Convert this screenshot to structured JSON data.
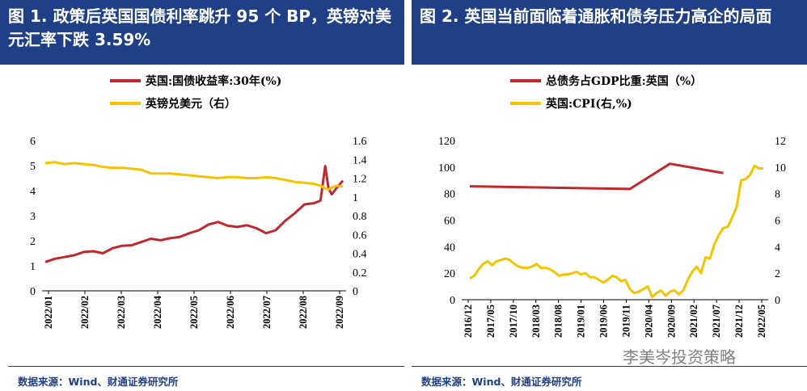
{
  "charts": [
    {
      "title": "图 1. 政策后英国国债利率跳升 95 个 BP，英镑对美元汇率下跌 3.59%",
      "source": "数据来源：Wind、财通证券研究所",
      "legend": [
        "英国:国债收益率:30年(%)",
        "英镑兑美元（右）"
      ],
      "left_ticks": [
        "0",
        "1",
        "2",
        "3",
        "4",
        "5",
        "6"
      ],
      "right_ticks": [
        "0",
        "0.2",
        "0.4",
        "0.6",
        "0.8",
        "1",
        "1.2",
        "1.4",
        "1.6"
      ],
      "x_ticks": [
        "2022/01",
        "2022/02",
        "2022/03",
        "2022/04",
        "2022/05",
        "2022/06",
        "2022/07",
        "2022/08",
        "2022/09"
      ]
    },
    {
      "title": "图 2. 英国当前面临着通胀和债务压力高企的局面",
      "source": "数据来源：Wind、财通证券研究所",
      "legend": [
        "总债务占GDP比重:英国（%）",
        "英国:CPI(右,%)"
      ],
      "left_ticks": [
        "0",
        "20",
        "40",
        "60",
        "80",
        "100",
        "120"
      ],
      "right_ticks": [
        "0",
        "2",
        "4",
        "6",
        "8",
        "10",
        "12"
      ],
      "x_ticks": [
        "2016/12",
        "2017/05",
        "2017/10",
        "2018/03",
        "2018/08",
        "2019/01",
        "2019/06",
        "2019/11",
        "2020/04",
        "2020/09",
        "2021/02",
        "2021/07",
        "2021/12",
        "2022/05"
      ]
    }
  ],
  "watermark": "李美岑投资策略",
  "colors": {
    "title_bg": "#1f3f86",
    "red": "#c0282d",
    "yellow": "#f5c400"
  },
  "chart_data": [
    {
      "type": "line",
      "title": "政策后英国国债利率跳升 95 个 BP，英镑对美元汇率下跌 3.59%",
      "x": [
        0,
        0.3,
        0.6,
        0.9,
        1.2,
        1.5,
        1.8,
        2.1,
        2.4,
        2.7,
        3.0,
        3.3,
        3.6,
        3.9,
        4.2,
        4.5,
        4.8,
        5.1,
        5.4,
        5.7,
        6.0,
        6.3,
        6.6,
        6.9,
        7.2,
        7.5,
        7.8,
        8.1,
        8.4,
        8.6,
        8.75,
        8.85,
        8.95,
        9.1,
        9.3
      ],
      "x_unit": "months since 2022/01",
      "ylim_left": [
        0,
        6
      ],
      "ylim_right": [
        0,
        1.6
      ],
      "series": [
        {
          "name": "英国:国债收益率:30年(%)",
          "axis": "left",
          "color": "#c0282d",
          "values": [
            1.15,
            1.28,
            1.35,
            1.42,
            1.55,
            1.58,
            1.5,
            1.7,
            1.8,
            1.82,
            1.95,
            2.08,
            2.02,
            2.1,
            2.15,
            2.3,
            2.42,
            2.65,
            2.75,
            2.6,
            2.55,
            2.62,
            2.5,
            2.3,
            2.42,
            2.8,
            3.1,
            3.45,
            3.5,
            3.6,
            4.98,
            4.1,
            3.85,
            4.1,
            4.4
          ]
        },
        {
          "name": "英镑兑美元（右）",
          "axis": "right",
          "color": "#f5c400",
          "values": [
            1.36,
            1.37,
            1.35,
            1.36,
            1.35,
            1.34,
            1.32,
            1.31,
            1.31,
            1.3,
            1.29,
            1.25,
            1.25,
            1.25,
            1.24,
            1.23,
            1.22,
            1.21,
            1.2,
            1.21,
            1.21,
            1.2,
            1.2,
            1.21,
            1.2,
            1.18,
            1.16,
            1.15,
            1.14,
            1.12,
            1.09,
            1.08,
            1.1,
            1.12,
            1.11
          ]
        }
      ]
    },
    {
      "type": "line",
      "title": "英国当前面临着通胀和债务压力高企的局面",
      "x": [
        0,
        1,
        2,
        3,
        4,
        5,
        6,
        7,
        8,
        9,
        10,
        11,
        12,
        13,
        14,
        15,
        16,
        17,
        18,
        19,
        20,
        21,
        22,
        23,
        24,
        25,
        26,
        27,
        28,
        29,
        30,
        31,
        32,
        33,
        34,
        35,
        36,
        37,
        38,
        39,
        40,
        41,
        42,
        43,
        44,
        45,
        46,
        47,
        48,
        49,
        50,
        51,
        52,
        53,
        54,
        55,
        56,
        57,
        58,
        59,
        60,
        61,
        62,
        63,
        64,
        65,
        66
      ],
      "x_unit": "months since 2016/12",
      "ylim_left": [
        0,
        120
      ],
      "ylim_right": [
        0,
        12
      ],
      "series": [
        {
          "name": "总债务占GDP比重:英国（%）",
          "axis": "left",
          "color": "#c0282d",
          "points": [
            [
              0,
              85.5
            ],
            [
              36,
              83.5
            ],
            [
              45,
              102.5
            ],
            [
              57,
              95.5
            ]
          ]
        },
        {
          "name": "英国:CPI(右,%)",
          "axis": "right",
          "color": "#f5c400",
          "values": [
            1.6,
            1.8,
            2.3,
            2.7,
            2.9,
            2.6,
            2.9,
            3.0,
            3.1,
            3.0,
            2.7,
            2.5,
            2.4,
            2.4,
            2.5,
            2.7,
            2.4,
            2.4,
            2.3,
            2.1,
            1.8,
            1.9,
            1.9,
            2.0,
            2.1,
            1.9,
            2.0,
            1.7,
            1.7,
            1.5,
            1.3,
            1.5,
            1.8,
            1.7,
            1.4,
            1.5,
            0.8,
            0.5,
            0.6,
            0.8,
            1.0,
            0.2,
            0.5,
            0.7,
            0.3,
            0.6,
            0.7,
            0.4,
            0.7,
            1.5,
            2.1,
            2.5,
            2.0,
            3.2,
            3.1,
            4.2,
            4.9,
            5.4,
            5.5,
            6.2,
            7.0,
            9.0,
            9.1,
            9.4,
            10.1,
            9.9,
            9.9
          ]
        }
      ]
    }
  ]
}
